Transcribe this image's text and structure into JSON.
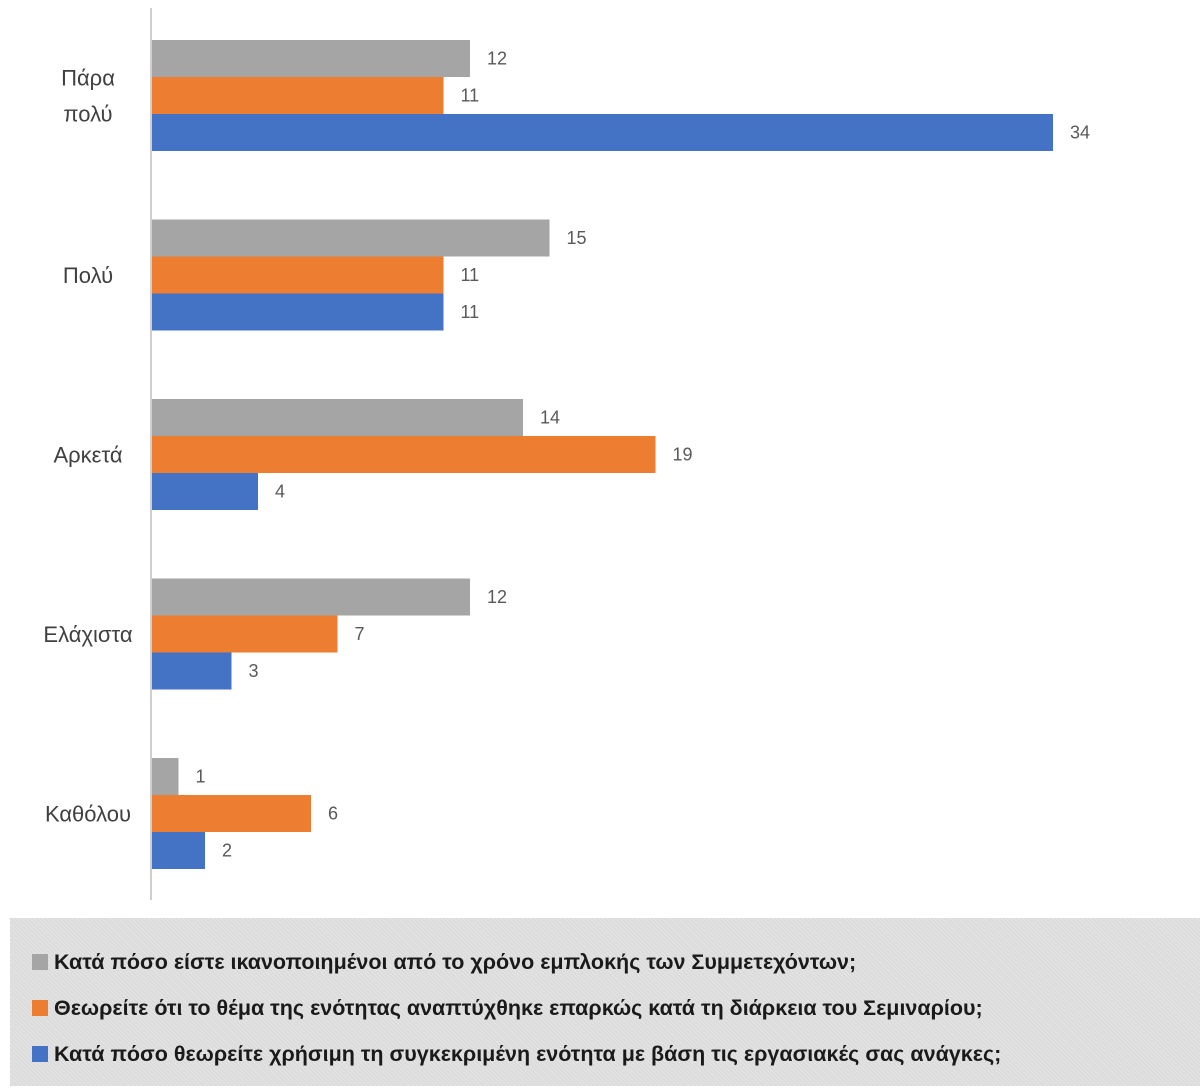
{
  "chart_data": {
    "type": "bar",
    "orientation": "horizontal",
    "categories": [
      "Πάρα πολύ",
      "Πολύ",
      "Αρκετά",
      "Ελάχιστα",
      "Καθόλου"
    ],
    "category_label_lines": [
      [
        "Πάρα",
        "πολύ"
      ],
      [
        "Πολύ"
      ],
      [
        "Αρκετά"
      ],
      [
        "Ελάχιστα"
      ],
      [
        "Καθόλου"
      ]
    ],
    "series": [
      {
        "name": "Κατά πόσο είστε ικανοποιημένοι από το χρόνο  εμπλοκής των Συμμετεχόντων;",
        "color": "#a5a5a5",
        "values": [
          12,
          15,
          14,
          12,
          1
        ]
      },
      {
        "name": "Θεωρείτε ότι το θέμα της ενότητας αναπτύχθηκε επαρκώς κατά τη διάρκεια του Σεμιναρίου;",
        "color": "#ed7d31",
        "values": [
          11,
          11,
          19,
          7,
          6
        ]
      },
      {
        "name": "Κατά πόσο θεωρείτε χρήσιμη τη συγκεκριμένη ενότητα με βάση τις εργασιακές σας ανάγκες;",
        "color": "#4472c4",
        "values": [
          34,
          11,
          4,
          3,
          2
        ]
      }
    ],
    "title": "",
    "xlabel": "",
    "ylabel": "",
    "xlim": [
      0,
      35
    ],
    "grid": false,
    "data_labels": true,
    "legend_position": "bottom"
  }
}
